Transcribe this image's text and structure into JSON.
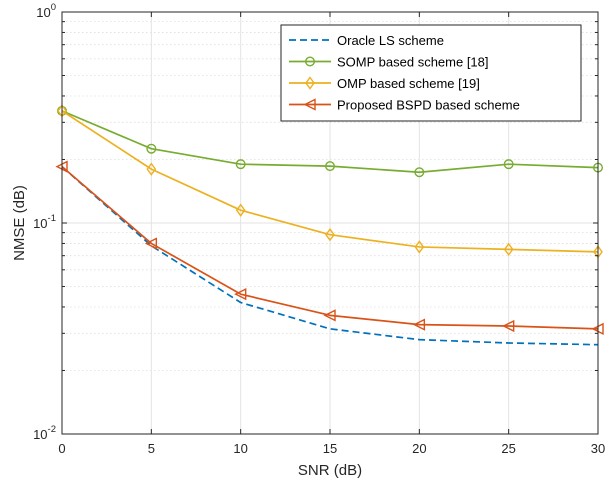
{
  "chart_data": {
    "type": "line",
    "title": "",
    "xlabel": "SNR (dB)",
    "ylabel": "NMSE (dB)",
    "xlim": [
      0,
      30
    ],
    "ylim": [
      0.01,
      1
    ],
    "yscale": "log",
    "grid": true,
    "legend_position": "top-right",
    "x": [
      0,
      5,
      10,
      15,
      20,
      25,
      30
    ],
    "x_ticks": [
      "0",
      "5",
      "10",
      "15",
      "20",
      "25",
      "30"
    ],
    "y_ticks": [
      {
        "value": 1,
        "base": "10",
        "exp": "0"
      },
      {
        "value": 0.1,
        "base": "10",
        "exp": "-1"
      },
      {
        "value": 0.01,
        "base": "10",
        "exp": "-2"
      }
    ],
    "series": [
      {
        "name": "Oracle LS scheme",
        "color": "#0072BD",
        "style": "dashed",
        "marker": "none",
        "values": [
          0.185,
          0.078,
          0.042,
          0.0315,
          0.028,
          0.027,
          0.0265
        ]
      },
      {
        "name": "SOMP based scheme [18]",
        "color": "#77AC30",
        "style": "solid",
        "marker": "circle",
        "values": [
          0.34,
          0.225,
          0.19,
          0.186,
          0.174,
          0.19,
          0.183
        ]
      },
      {
        "name": "OMP based scheme [19]",
        "color": "#EDB120",
        "style": "solid",
        "marker": "diamond",
        "values": [
          0.34,
          0.18,
          0.115,
          0.088,
          0.077,
          0.075,
          0.073
        ]
      },
      {
        "name": "Proposed BSPD based scheme",
        "color": "#D95319",
        "style": "solid",
        "marker": "triangle-left",
        "values": [
          0.185,
          0.08,
          0.046,
          0.0365,
          0.033,
          0.0325,
          0.0315
        ]
      }
    ]
  }
}
